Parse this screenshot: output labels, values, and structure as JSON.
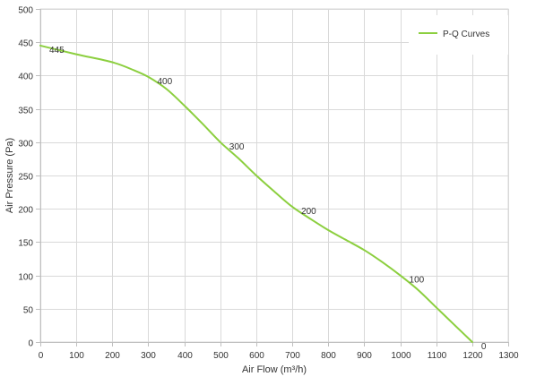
{
  "chart_data": {
    "type": "line",
    "xlabel": "Air Flow  (m³/h)",
    "ylabel": "Air Pressure  (Pa)",
    "xlim": [
      0,
      1300
    ],
    "ylim": [
      0,
      500
    ],
    "x_ticks": [
      0,
      100,
      200,
      300,
      400,
      500,
      600,
      700,
      800,
      900,
      1000,
      1100,
      1200,
      1300
    ],
    "y_ticks": [
      0,
      50,
      100,
      150,
      200,
      250,
      300,
      350,
      400,
      450,
      500
    ],
    "grid": true,
    "legend_position": "top-right",
    "series": [
      {
        "name": "P-Q Curves",
        "color": "#8ccf3f",
        "x": [
          0,
          100,
          200,
          260,
          300,
          350,
          400,
          450,
          500,
          550,
          600,
          650,
          700,
          750,
          800,
          850,
          900,
          950,
          1000,
          1050,
          1100,
          1150,
          1200
        ],
        "y": [
          445,
          432,
          420,
          408,
          398,
          380,
          355,
          328,
          300,
          276,
          250,
          226,
          203,
          185,
          168,
          153,
          138,
          120,
          100,
          78,
          52,
          26,
          0
        ]
      }
    ],
    "annotations": [
      {
        "text": "445",
        "x": 0,
        "y": 445
      },
      {
        "text": "400",
        "x": 300,
        "y": 398
      },
      {
        "text": "300",
        "x": 500,
        "y": 300
      },
      {
        "text": "200",
        "x": 700,
        "y": 203
      },
      {
        "text": "100",
        "x": 1000,
        "y": 100
      },
      {
        "text": "0",
        "x": 1200,
        "y": 0
      }
    ]
  }
}
